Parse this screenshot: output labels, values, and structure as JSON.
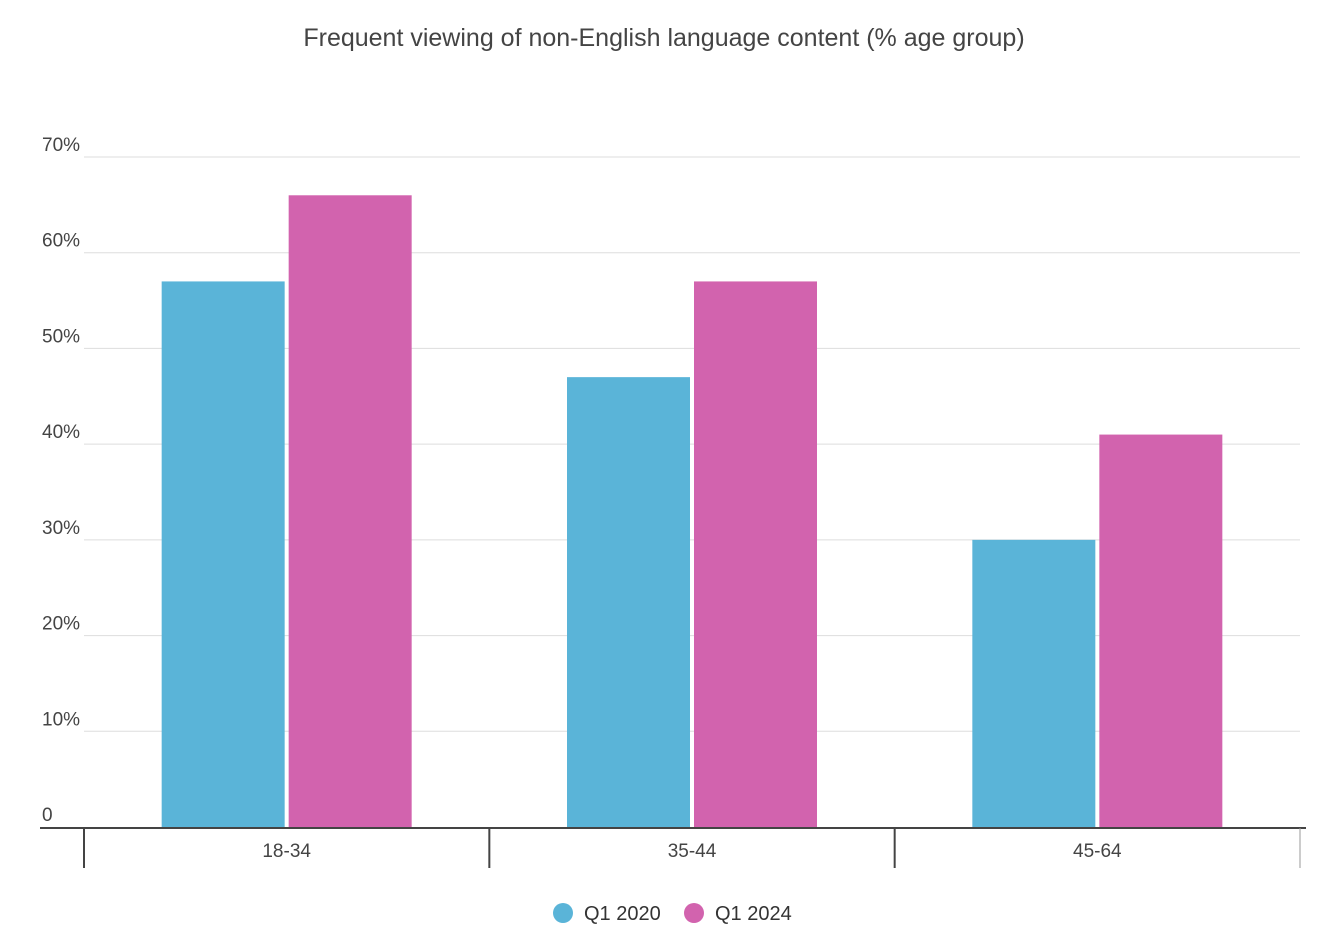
{
  "chart_data": {
    "type": "bar",
    "title": "Frequent viewing of non-English language content (% age group)",
    "xlabel": "",
    "ylabel": "",
    "categories": [
      "18-34",
      "35-44",
      "45-64"
    ],
    "series": [
      {
        "name": "Q1 2020",
        "color": "#5ab4d8",
        "values": [
          57,
          47,
          30
        ]
      },
      {
        "name": "Q1 2024",
        "color": "#d263ae",
        "values": [
          66,
          57,
          41
        ]
      }
    ],
    "ylim": [
      0,
      70
    ],
    "yticks": [
      0,
      10,
      20,
      30,
      40,
      50,
      60,
      70
    ],
    "ytick_labels": [
      "0",
      "10%",
      "20%",
      "30%",
      "40%",
      "50%",
      "60%",
      "70%"
    ],
    "grid": true,
    "legend_position": "bottom-center"
  }
}
